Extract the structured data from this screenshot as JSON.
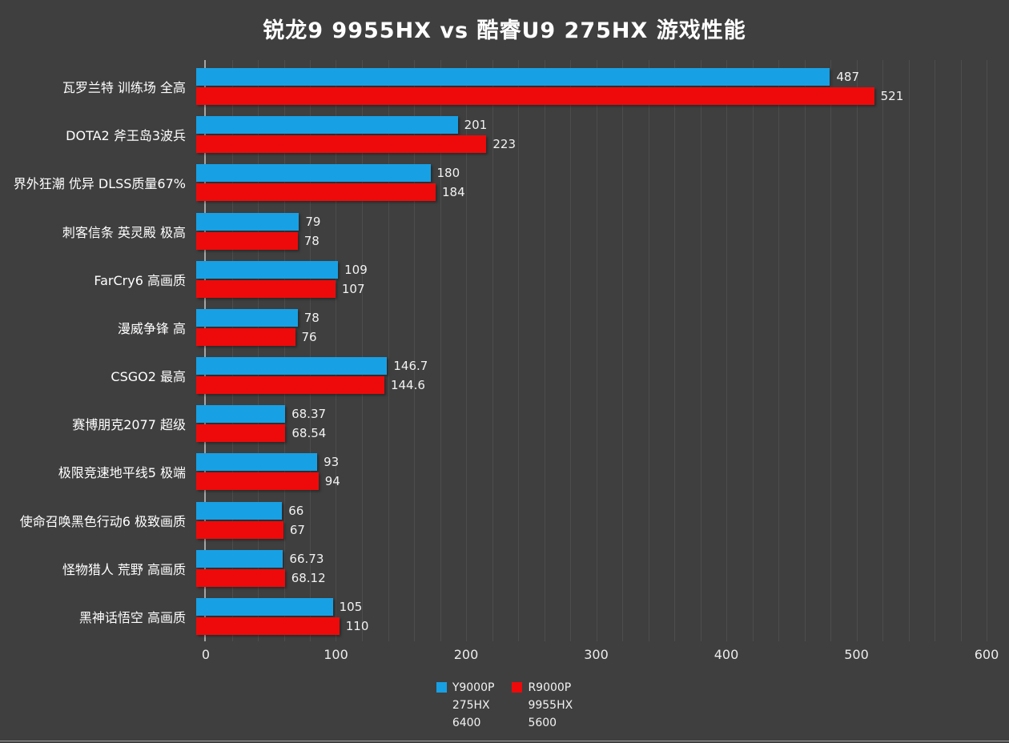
{
  "title": "锐龙9 9955HX vs 酷睿U9 275HX 游戏性能",
  "chart_data": {
    "type": "bar",
    "orientation": "horizontal",
    "title": "锐龙9 9955HX vs 酷睿U9 275HX 游戏性能",
    "categories": [
      "瓦罗兰特 训练场 全高",
      "DOTA2 斧王岛3波兵",
      "界外狂潮 优异 DLSS质量67%",
      "刺客信条 英灵殿 极高",
      "FarCry6 高画质",
      "漫威争锋 高",
      "CSGO2 最高",
      "赛博朋克2077 超级",
      "极限竞速地平线5 极端",
      "使命召唤黑色行动6 极致画质",
      "怪物猎人 荒野 高画质",
      "黑神话悟空 高画质"
    ],
    "series": [
      {
        "name": "Y9000P 275HX 6400",
        "legend_lines": [
          "Y9000P",
          "275HX",
          "6400"
        ],
        "color": "#18A0E4",
        "values": [
          487,
          201,
          180,
          79,
          109,
          78,
          146.7,
          68.37,
          93,
          66,
          66.73,
          105
        ]
      },
      {
        "name": "R9000P 9955HX 5600",
        "legend_lines": [
          "R9000P",
          "9955HX",
          "5600"
        ],
        "color": "#EE0A0A",
        "values": [
          521,
          223,
          184,
          78,
          107,
          76,
          144.6,
          68.54,
          94,
          67,
          68.12,
          110
        ]
      }
    ],
    "xlim": [
      0,
      600
    ],
    "xticks": [
      0,
      100,
      200,
      300,
      400,
      500,
      600
    ],
    "grid": true,
    "grid_step": 20,
    "legend_position": "bottom"
  },
  "colors": {
    "background": "#3F3F3F",
    "gridline": "#4D4D4D",
    "axis_line": "#A6A6A6",
    "text": "#FFFFFF",
    "series_blue": "#18A0E4",
    "series_red": "#EE0A0A"
  }
}
